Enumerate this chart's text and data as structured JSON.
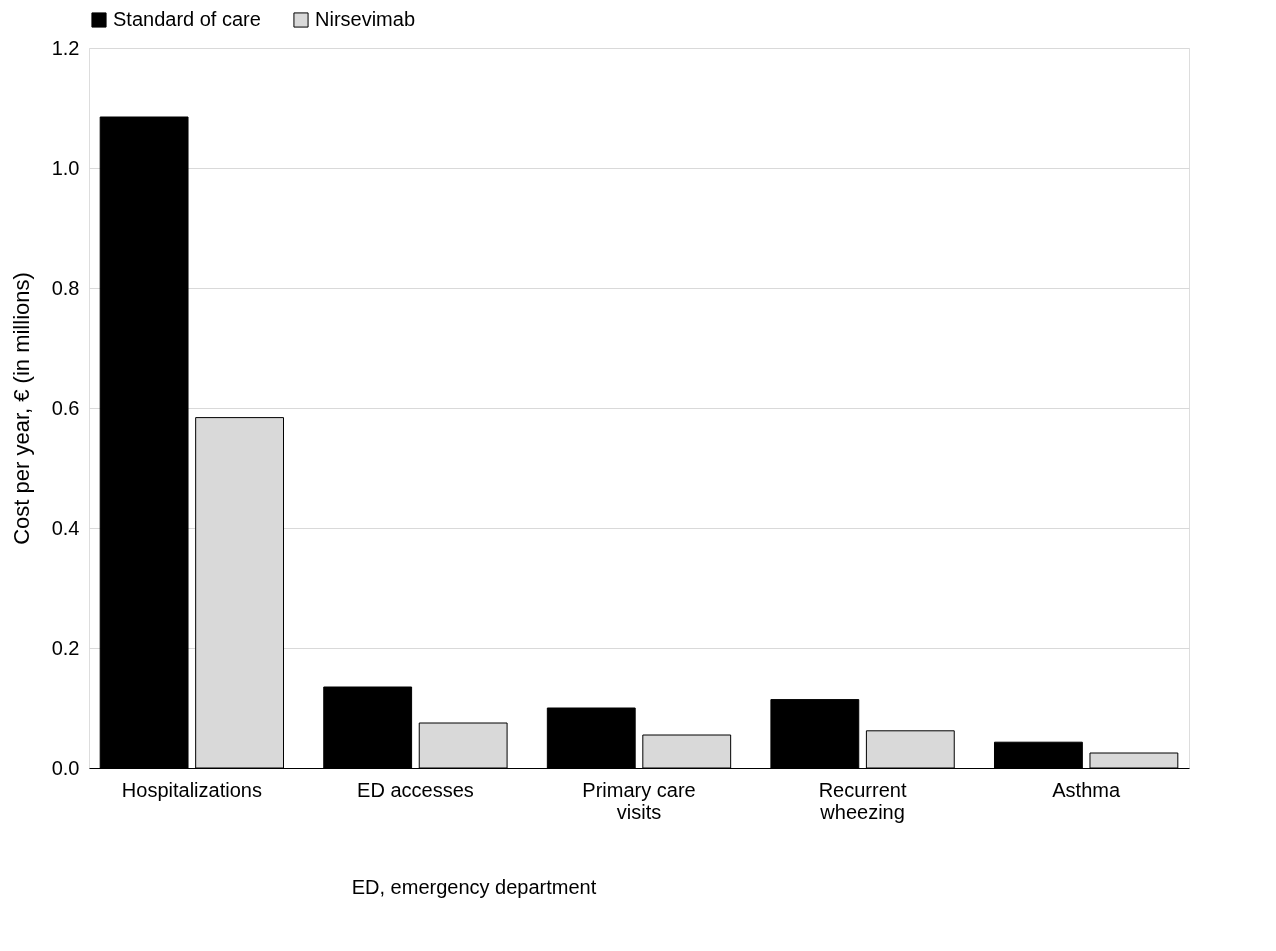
{
  "chart_data": {
    "type": "bar",
    "ylabel": "Cost per year, € (in millions)",
    "categories": [
      "Hospitalizations",
      "ED accesses",
      "Primary care visits",
      "Recurrent wheezing",
      "Asthma"
    ],
    "series": [
      {
        "name": "Standard of care",
        "color": "#000000",
        "values": [
          1.085,
          0.135,
          0.1,
          0.114,
          0.043
        ]
      },
      {
        "name": "Nirsevimab",
        "color": "#d9d9d9",
        "values": [
          0.584,
          0.075,
          0.055,
          0.062,
          0.025
        ]
      }
    ],
    "ylim": [
      0,
      1.2
    ],
    "yticks": [
      {
        "value": 0,
        "label": "0.0"
      },
      {
        "value": 0.2,
        "label": "0.2"
      },
      {
        "value": 0.4,
        "label": "0.4"
      },
      {
        "value": 0.6,
        "label": "0.6"
      },
      {
        "value": 0.8,
        "label": "0.8"
      },
      {
        "value": 1.0,
        "label": "1.0"
      },
      {
        "value": 1.2,
        "label": "1.2"
      }
    ],
    "grid": "y",
    "legend": "top",
    "annotations": [
      "ED, emergency department"
    ]
  }
}
